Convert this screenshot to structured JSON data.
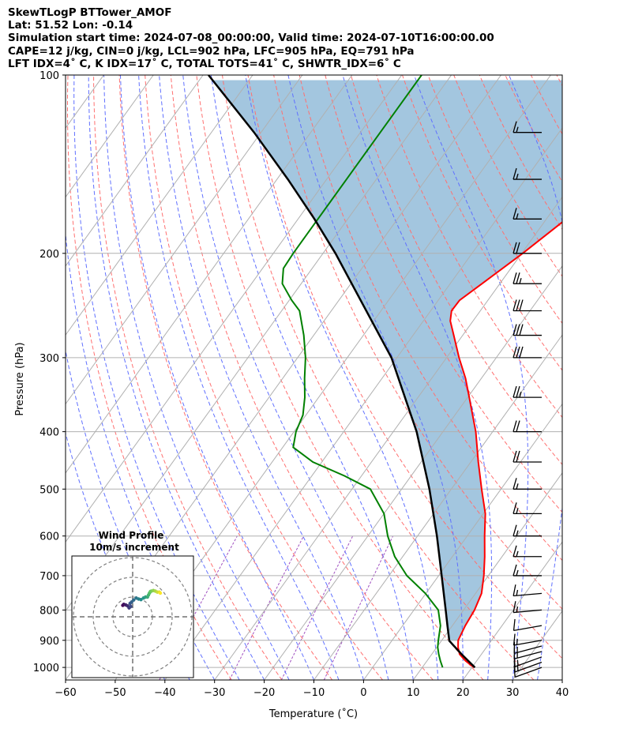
{
  "header": {
    "line1": "SkewTLogP BTTower_AMOF",
    "line2": "Lat: 51.52   Lon: -0.14",
    "line3": "Simulation start time: 2024-07-08_00:00:00, Valid time: 2024-07-10T16:00:00.00",
    "line4": "CAPE=12 j/kg, CIN=0 j/kg, LCL=902 hPa, LFC=905 hPa, EQ=791 hPa",
    "line5": "LFT IDX=4˚ C, K IDX=17˚ C, TOTAL TOTS=41˚ C, SHWTR_IDX=6˚ C"
  },
  "chart_data": [
    {
      "type": "line",
      "name": "skew-t-log-p",
      "xlabel": "Temperature (˚C)",
      "ylabel": "Pressure (hPa)",
      "xlim": [
        -60,
        40
      ],
      "ylim": [
        1050,
        100
      ],
      "y_scale": "log",
      "x_ticks": [
        -60,
        -50,
        -40,
        -30,
        -20,
        -10,
        0,
        10,
        20,
        30,
        40
      ],
      "x_tick_labels": [
        "−60",
        "−50",
        "−40",
        "−30",
        "−20",
        "−10",
        "0",
        "10",
        "20",
        "30",
        "40"
      ],
      "y_ticks": [
        1000,
        900,
        800,
        700,
        600,
        500,
        400,
        300,
        200,
        100
      ],
      "y_tick_labels": [
        "1000",
        "900",
        "800",
        "700",
        "600",
        "500",
        "400",
        "300",
        "200",
        "100"
      ],
      "grid": true,
      "colors": {
        "temperature": "#ff0000",
        "dewpoint": "#008000",
        "parcel": "#000000",
        "cape_fill": "#a3c6df",
        "isotherm": "#b0b0b0",
        "dry_adiabat": "#ff7070",
        "moist_adiabat": "#6070ff",
        "mixing_ratio": "#a050c0"
      },
      "temperature": {
        "p": [
          1000,
          975,
          950,
          925,
          900,
          850,
          800,
          750,
          700,
          650,
          600,
          550,
          500,
          450,
          400,
          350,
          325,
          300,
          275,
          260,
          250,
          240,
          225,
          200,
          175,
          150,
          125,
          110,
          100
        ],
        "t": [
          20.4,
          17.8,
          15.6,
          14.3,
          13.3,
          12.6,
          12.2,
          11.2,
          9.1,
          6.5,
          3.5,
          0.4,
          -3.9,
          -8.5,
          -13.4,
          -19.7,
          -23.2,
          -27.5,
          -31.8,
          -34.6,
          -35.8,
          -35.7,
          -33.6,
          -29.8,
          -26.0,
          -23.7,
          -22.3,
          -21.8,
          -21.5
        ]
      },
      "dewpoint": {
        "p": [
          1000,
          975,
          950,
          925,
          900,
          850,
          800,
          750,
          700,
          650,
          600,
          550,
          500,
          475,
          450,
          425,
          400,
          375,
          350,
          325,
          300,
          275,
          250,
          240,
          225,
          212,
          200,
          175,
          150,
          125,
          100
        ],
        "td": [
          14.1,
          12.7,
          11.4,
          10.2,
          9.3,
          7.6,
          4.9,
          -0.1,
          -6.4,
          -11.6,
          -16.0,
          -20.0,
          -26.3,
          -33.4,
          -41.8,
          -47.9,
          -49.6,
          -50.6,
          -52.8,
          -55.6,
          -58.4,
          -62.0,
          -66.4,
          -69.5,
          -73.8,
          -75.8,
          -76.0,
          -76.0,
          -76.0,
          -76.0,
          -76.0
        ]
      },
      "parcel": {
        "p": [
          1000,
          950,
          902,
          850,
          800,
          700,
          600,
          500,
          400,
          300,
          200,
          175,
          150,
          125,
          100
        ],
        "t": [
          20.6,
          16.0,
          11.6,
          9.0,
          6.4,
          0.6,
          -6.1,
          -14.4,
          -25.3,
          -41.1,
          -67.5,
          -76.7,
          -87.8,
          -101.4,
          -118.9
        ]
      },
      "wind_barbs": {
        "p": [
          1000,
          980,
          960,
          940,
          920,
          900,
          850,
          800,
          750,
          700,
          650,
          600,
          550,
          500,
          450,
          400,
          350,
          300,
          275,
          250,
          225,
          200,
          175,
          150,
          125
        ],
        "speed_kt": [
          10,
          15,
          15,
          15,
          15,
          15,
          10,
          15,
          15,
          15,
          15,
          15,
          15,
          15,
          20,
          20,
          25,
          30,
          30,
          30,
          25,
          20,
          15,
          15,
          15
        ],
        "direction_deg": [
          250,
          250,
          250,
          255,
          255,
          260,
          260,
          265,
          265,
          270,
          270,
          270,
          270,
          270,
          270,
          270,
          270,
          270,
          270,
          270,
          270,
          270,
          270,
          270,
          270
        ]
      }
    },
    {
      "type": "scatter",
      "name": "wind-hodograph",
      "title": "Wind Profile",
      "subtitle": "10m/s increment",
      "ring_increment_ms": 10,
      "rings": [
        10,
        20,
        30
      ],
      "u": [
        -5.0,
        -4.5,
        -3.5,
        -2.5,
        -1.8,
        -1.0,
        -1.3,
        -0.5,
        0.5,
        1.8,
        3.0,
        4.2,
        5.5,
        6.5,
        7.5,
        8.0,
        8.5,
        9.0,
        9.5,
        10.5,
        11.5,
        12.5,
        13.5,
        14.0
      ],
      "v": [
        5.8,
        6.3,
        6.0,
        5.5,
        4.5,
        5.2,
        6.8,
        7.5,
        8.5,
        9.5,
        9.0,
        8.7,
        9.5,
        10.0,
        10.0,
        11.0,
        12.0,
        12.8,
        13.0,
        13.3,
        13.0,
        12.5,
        12.5,
        12.0
      ]
    }
  ]
}
